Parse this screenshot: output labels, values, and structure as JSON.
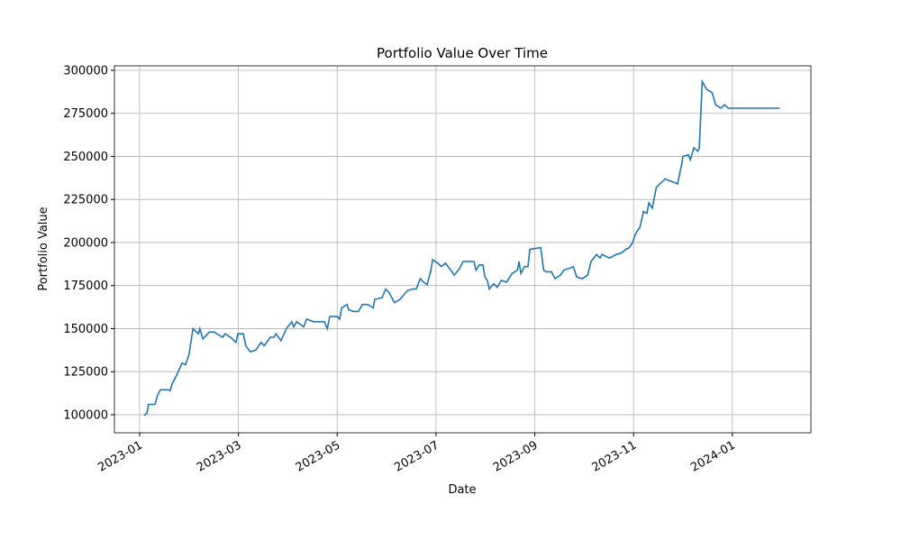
{
  "chart_data": {
    "type": "line",
    "title": "Portfolio Value Over Time",
    "x_label": "Date",
    "y_label": "Portfolio Value",
    "x": [
      1.09,
      1.15,
      1.18,
      1.31,
      1.36,
      1.42,
      1.57,
      1.62,
      1.66,
      1.75,
      1.86,
      1.93,
      2.0,
      2.08,
      2.19,
      2.22,
      2.28,
      2.41,
      2.51,
      2.68,
      2.73,
      2.84,
      2.95,
      2.99,
      3.1,
      3.15,
      3.24,
      3.35,
      3.46,
      3.52,
      3.65,
      3.72,
      3.76,
      3.86,
      3.97,
      4.08,
      4.12,
      4.18,
      4.32,
      4.38,
      4.52,
      4.74,
      4.8,
      4.85,
      5.0,
      5.05,
      5.09,
      5.2,
      5.23,
      5.32,
      5.43,
      5.51,
      5.62,
      5.73,
      5.76,
      5.91,
      5.98,
      6.05,
      6.16,
      6.27,
      6.42,
      6.53,
      6.6,
      6.68,
      6.75,
      6.82,
      6.89,
      6.93,
      7.04,
      7.11,
      7.19,
      7.3,
      7.37,
      7.48,
      7.55,
      7.66,
      7.77,
      7.81,
      7.88,
      7.95,
      7.99,
      8.04,
      8.08,
      8.17,
      8.24,
      8.32,
      8.43,
      8.54,
      8.65,
      8.68,
      8.72,
      8.79,
      8.86,
      8.9,
      9.01,
      9.12,
      9.18,
      9.23,
      9.34,
      9.41,
      9.52,
      9.59,
      9.7,
      9.78,
      9.85,
      9.96,
      10.07,
      10.14,
      10.25,
      10.32,
      10.36,
      10.51,
      10.65,
      10.76,
      10.84,
      10.91,
      10.98,
      11.04,
      11.13,
      11.2,
      11.27,
      11.31,
      11.38,
      11.46,
      11.57,
      11.64,
      11.71,
      11.82,
      11.89,
      11.97,
      12.0,
      12.11,
      12.15,
      12.22,
      12.3,
      12.33,
      12.39,
      12.48,
      12.59,
      12.66,
      12.77,
      12.84,
      12.92,
      13.96
    ],
    "series": [
      {
        "name": "Portfolio Value",
        "color": "#1f77b4",
        "values": [
          99500,
          101000,
          106000,
          106000,
          111000,
          114500,
          114500,
          114000,
          118000,
          123000,
          130000,
          129000,
          135000,
          150000,
          147000,
          150000,
          144000,
          148000,
          148000,
          145000,
          147000,
          145000,
          142000,
          147000,
          147000,
          140000,
          136500,
          137500,
          142000,
          140000,
          145000,
          145000,
          147000,
          143000,
          150000,
          154000,
          151000,
          154000,
          151000,
          155500,
          154000,
          154000,
          150000,
          157000,
          157000,
          155500,
          162000,
          164000,
          161000,
          160000,
          160000,
          164000,
          164000,
          162000,
          167000,
          168000,
          173000,
          171000,
          165000,
          167000,
          172000,
          173000,
          173000,
          179000,
          177000,
          175500,
          183000,
          190000,
          188000,
          186000,
          188000,
          184000,
          181000,
          185000,
          189000,
          189000,
          189000,
          184000,
          187000,
          187000,
          180000,
          178000,
          173000,
          176000,
          174000,
          178000,
          177000,
          182000,
          184000,
          189000,
          182000,
          186000,
          186000,
          196000,
          196500,
          197000,
          184000,
          183000,
          183000,
          179000,
          181000,
          184000,
          185000,
          186000,
          180000,
          179000,
          181000,
          189000,
          193000,
          191000,
          193000,
          191000,
          193000,
          194000,
          196000,
          197000,
          200000,
          205000,
          209000,
          218000,
          217000,
          223000,
          220000,
          232000,
          235000,
          237000,
          236000,
          235000,
          234000,
          245000,
          250000,
          251000,
          248000,
          255000,
          253000,
          255000,
          293500,
          289000,
          287000,
          280000,
          278000,
          280000,
          278000,
          278000
        ]
      }
    ],
    "xlim": [
      0.49,
      14.59
    ],
    "xticks": [
      {
        "value": 1,
        "label": "2023-01"
      },
      {
        "value": 3,
        "label": "2023-03"
      },
      {
        "value": 5,
        "label": "2023-05"
      },
      {
        "value": 7,
        "label": "2023-07"
      },
      {
        "value": 9,
        "label": "2023-09"
      },
      {
        "value": 11,
        "label": "2023-11"
      },
      {
        "value": 13,
        "label": "2024-01"
      }
    ],
    "ylim": [
      89500,
      302600
    ],
    "yticks": [
      100000,
      125000,
      150000,
      175000,
      200000,
      225000,
      250000,
      275000,
      300000
    ],
    "grid": true
  }
}
